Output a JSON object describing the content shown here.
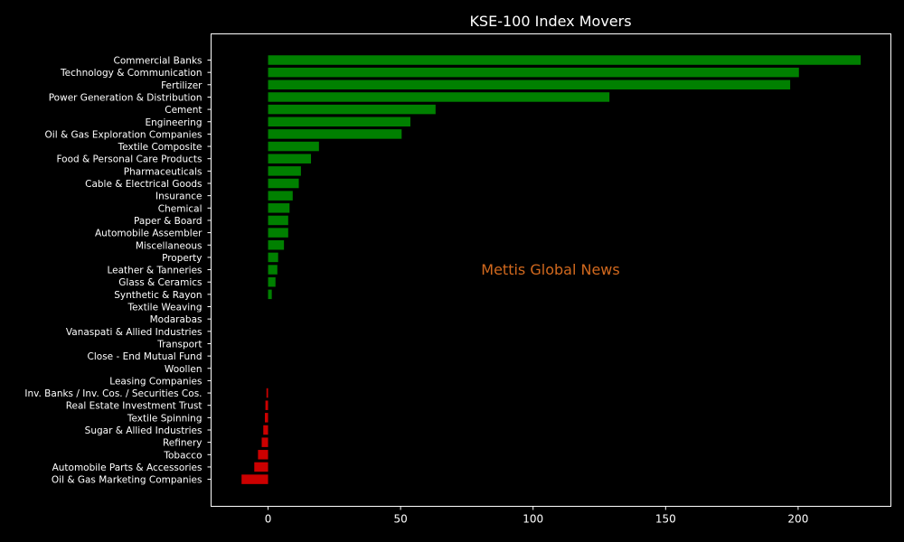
{
  "chart_data": {
    "type": "bar",
    "orientation": "horizontal",
    "title": "KSE-100 Index Movers",
    "watermark": "Mettis Global News",
    "xlim": [
      -21.5,
      235
    ],
    "xticks": [
      0,
      50,
      100,
      150,
      200
    ],
    "grid": false,
    "colors": {
      "background": "#000000",
      "axes_background": "#000000",
      "positive": "#008000",
      "negative": "#cc0000",
      "text": "#ffffff",
      "watermark": "#d2691e"
    },
    "categories": [
      "Commercial Banks",
      "Technology & Communication",
      "Fertilizer",
      "Power Generation & Distribution",
      "Cement",
      "Engineering",
      "Oil & Gas Exploration Companies",
      "Textile Composite",
      "Food & Personal Care Products",
      "Pharmaceuticals",
      "Cable & Electrical Goods",
      "Insurance",
      "Chemical",
      "Paper & Board",
      "Automobile Assembler",
      "Miscellaneous",
      "Property",
      "Leather & Tanneries",
      "Glass & Ceramics",
      "Synthetic & Rayon",
      "Textile Weaving",
      "Modarabas",
      "Vanaspati & Allied Industries",
      "Transport",
      "Close - End Mutual Fund",
      "Woollen",
      "Leasing Companies",
      "Inv. Banks / Inv. Cos. / Securities Cos.",
      "Real Estate Investment Trust",
      "Textile Spinning",
      "Sugar & Allied Industries",
      "Refinery",
      "Tobacco",
      "Automobile Parts & Accessories",
      "Oil & Gas Marketing Companies"
    ],
    "values": [
      223.6,
      200.3,
      197.0,
      128.8,
      63.2,
      53.7,
      50.4,
      19.2,
      16.2,
      12.4,
      11.6,
      9.3,
      8.1,
      7.6,
      7.6,
      6.0,
      3.8,
      3.5,
      2.8,
      1.4,
      0.0,
      0.0,
      0.0,
      0.0,
      0.0,
      0.0,
      0.0,
      -0.6,
      -1.0,
      -1.2,
      -1.8,
      -2.4,
      -3.8,
      -5.2,
      -10.0
    ]
  }
}
